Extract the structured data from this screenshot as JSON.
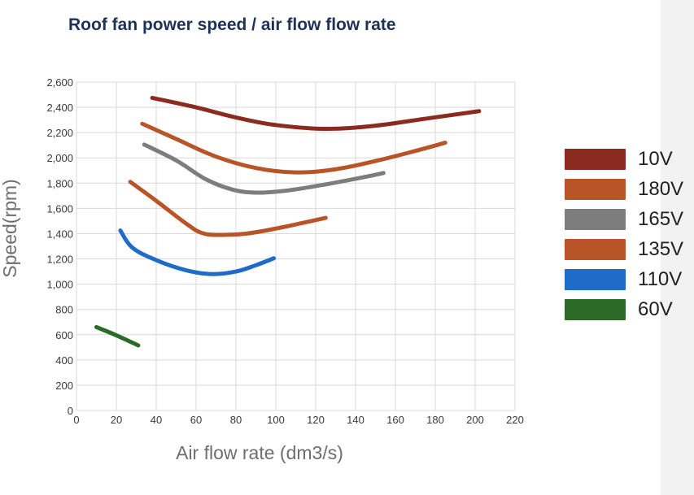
{
  "chart_data": {
    "type": "line",
    "title": "Roof fan power speed / air flow flow rate",
    "xlabel": "Air flow rate (dm3/s)",
    "ylabel": "Speed(rpm)",
    "xlim": [
      0,
      220
    ],
    "ylim": [
      0,
      2600
    ],
    "xticks": [
      0,
      20,
      40,
      60,
      80,
      100,
      120,
      140,
      160,
      180,
      200,
      220
    ],
    "yticks": [
      "0",
      "200",
      "400",
      "600",
      "800",
      "1,000",
      "1,200",
      "1,400",
      "1,600",
      "1,800",
      "2,000",
      "2,200",
      "2,400",
      "2,600"
    ],
    "grid": true,
    "legend_position": "right",
    "series": [
      {
        "name": "10V",
        "color": "#8b2a1e",
        "points": [
          [
            38,
            2475
          ],
          [
            60,
            2400
          ],
          [
            80,
            2320
          ],
          [
            100,
            2260
          ],
          [
            125,
            2230
          ],
          [
            150,
            2255
          ],
          [
            175,
            2310
          ],
          [
            202,
            2370
          ]
        ]
      },
      {
        "name": "180V",
        "color": "#b85528",
        "points": [
          [
            33,
            2270
          ],
          [
            50,
            2150
          ],
          [
            70,
            2010
          ],
          [
            90,
            1920
          ],
          [
            110,
            1885
          ],
          [
            130,
            1910
          ],
          [
            150,
            1975
          ],
          [
            170,
            2055
          ],
          [
            185,
            2120
          ]
        ]
      },
      {
        "name": "165V",
        "color": "#7d7d7d",
        "points": [
          [
            34,
            2105
          ],
          [
            50,
            1980
          ],
          [
            65,
            1830
          ],
          [
            78,
            1750
          ],
          [
            90,
            1725
          ],
          [
            105,
            1740
          ],
          [
            125,
            1790
          ],
          [
            145,
            1850
          ],
          [
            154,
            1880
          ]
        ]
      },
      {
        "name": "135V",
        "color": "#b85528",
        "points": [
          [
            27,
            1810
          ],
          [
            40,
            1660
          ],
          [
            55,
            1480
          ],
          [
            63,
            1405
          ],
          [
            72,
            1390
          ],
          [
            85,
            1400
          ],
          [
            100,
            1440
          ],
          [
            115,
            1490
          ],
          [
            125,
            1525
          ]
        ]
      },
      {
        "name": "110V",
        "color": "#1e6bc8",
        "points": [
          [
            22,
            1425
          ],
          [
            28,
            1290
          ],
          [
            40,
            1190
          ],
          [
            55,
            1110
          ],
          [
            68,
            1080
          ],
          [
            80,
            1100
          ],
          [
            90,
            1150
          ],
          [
            99,
            1205
          ]
        ]
      },
      {
        "name": "60V",
        "color": "#2c6a27",
        "points": [
          [
            10,
            660
          ],
          [
            20,
            595
          ],
          [
            31,
            515
          ]
        ]
      }
    ]
  }
}
